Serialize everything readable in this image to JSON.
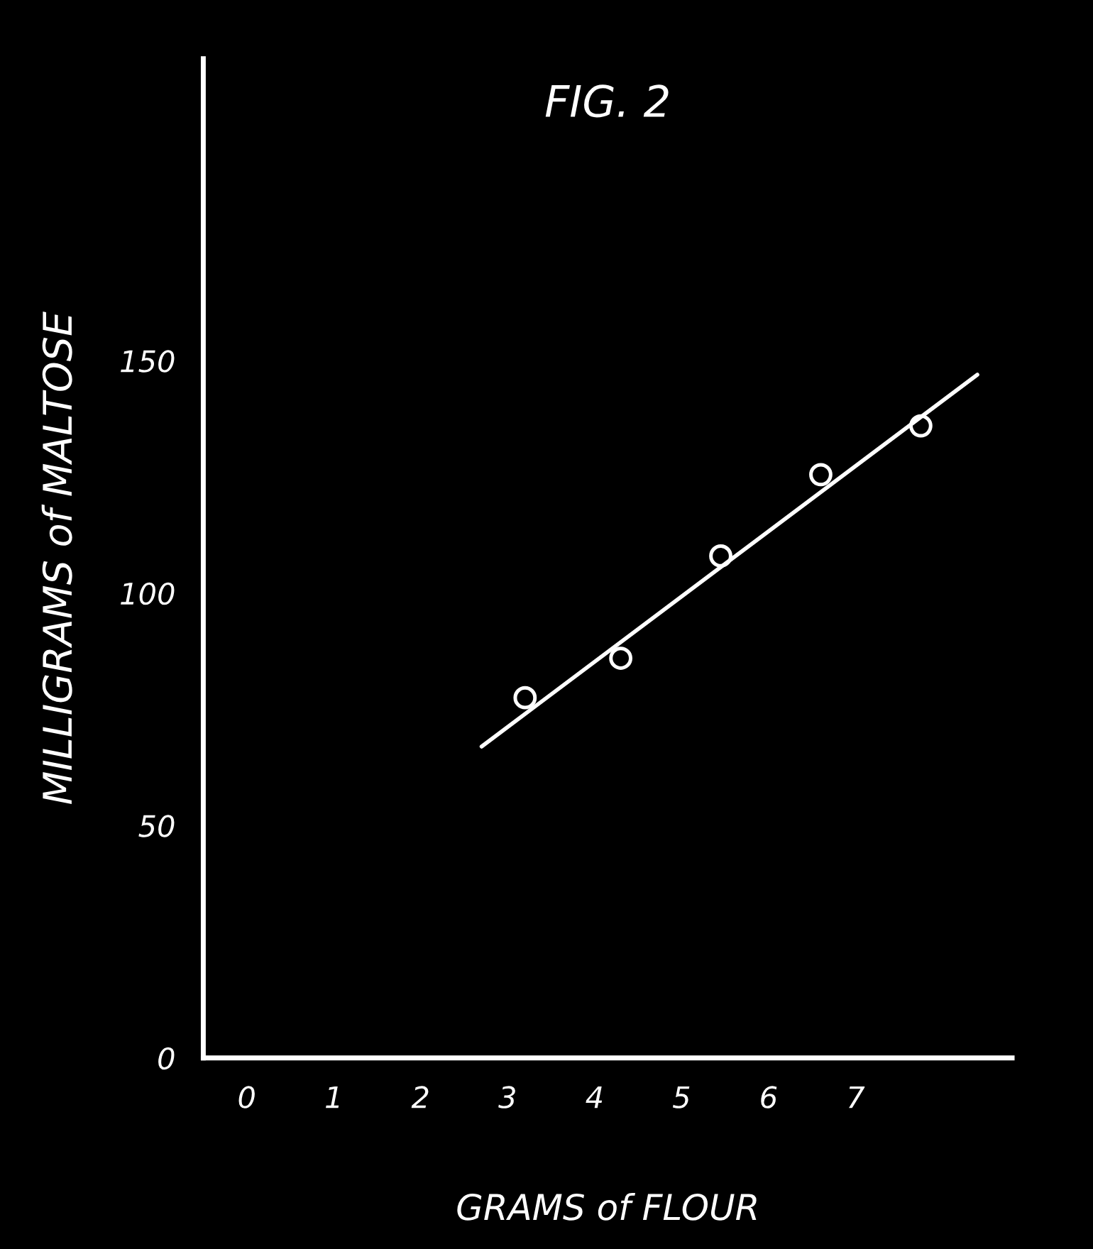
{
  "chart_data": {
    "type": "scatter",
    "title": "FIG. 2",
    "xlabel": "GRAMS of FLOUR",
    "ylabel": "MILLIGRAMS of MALTOSE",
    "xlim": [
      -0.5,
      8.8
    ],
    "ylim": [
      0,
      215
    ],
    "xticks": [
      0,
      1,
      2,
      3,
      4,
      5,
      6,
      7
    ],
    "yticks": [
      0,
      50,
      100,
      150
    ],
    "grid": false,
    "legend": false,
    "series": [
      {
        "marker": "circle",
        "color": "#ffffff",
        "x": [
          3.2,
          4.3,
          5.45,
          6.6,
          7.75
        ],
        "values": [
          77.5,
          86,
          108,
          125.5,
          136
        ]
      },
      {
        "type": "line",
        "marker": "none",
        "color": "#ffffff",
        "line_style": "solid",
        "x": [
          2.7,
          8.4
        ],
        "values": [
          67,
          147
        ]
      }
    ]
  }
}
